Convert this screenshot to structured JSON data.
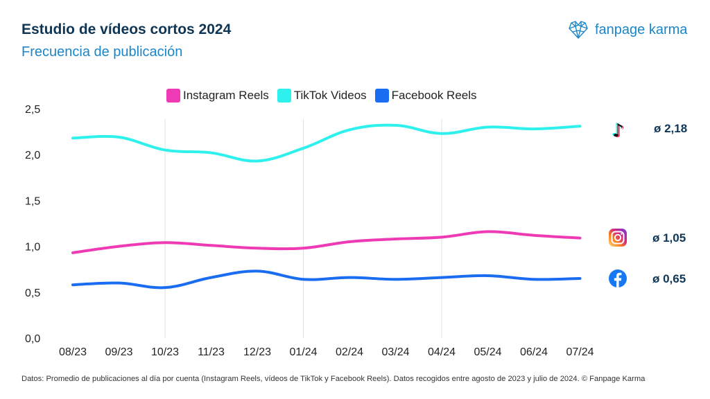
{
  "header": {
    "title": "Estudio de vídeos cortos 2024",
    "subtitle": "Frecuencia de publicación",
    "brand": "fanpage karma"
  },
  "legend": [
    {
      "label": "Instagram Reels",
      "color": "#ee3bb5"
    },
    {
      "label": "TikTok Videos",
      "color": "#2ef0ec"
    },
    {
      "label": "Facebook Reels",
      "color": "#1a6cf0"
    }
  ],
  "averages": {
    "tiktok": "ø 2,18",
    "instagram": "ø 1,05",
    "facebook": "ø 0,65"
  },
  "icons": {
    "tiktok": "tiktok-icon",
    "instagram": "instagram-icon",
    "facebook": "facebook-icon",
    "brand": "fanpage-karma-logo-icon"
  },
  "footnote": "Datos: Promedio de publicaciones al día por cuenta (Instagram Reels, vídeos de TikTok y Facebook Reels). Datos recogidos entre agosto de 2023 y julio de 2024. © Fanpage Karma",
  "chart_data": {
    "type": "line",
    "title": "Frecuencia de publicación",
    "xlabel": "",
    "ylabel": "",
    "categories": [
      "08/23",
      "09/23",
      "10/23",
      "11/23",
      "12/23",
      "01/24",
      "02/24",
      "03/24",
      "04/24",
      "05/24",
      "06/24",
      "07/24"
    ],
    "y_ticks": [
      "0,0",
      "0,5",
      "1,0",
      "1,5",
      "2,0",
      "2,5"
    ],
    "y_tick_values": [
      0,
      0.5,
      1.0,
      1.5,
      2.0,
      2.5
    ],
    "ylim": [
      0,
      2.5
    ],
    "grid": "vertical lines at 10/23, 01/24, 04/24",
    "legend_position": "top-center",
    "series": [
      {
        "name": "TikTok Videos",
        "color": "#2ef0ec",
        "values": [
          2.18,
          2.19,
          2.05,
          2.02,
          1.93,
          2.07,
          2.27,
          2.32,
          2.23,
          2.3,
          2.28,
          2.31
        ]
      },
      {
        "name": "Instagram Reels",
        "color": "#ee3bb5",
        "values": [
          0.93,
          1.0,
          1.04,
          1.01,
          0.98,
          0.98,
          1.05,
          1.08,
          1.1,
          1.16,
          1.12,
          1.09
        ]
      },
      {
        "name": "Facebook Reels",
        "color": "#1a6cf0",
        "values": [
          0.58,
          0.6,
          0.55,
          0.66,
          0.73,
          0.64,
          0.66,
          0.64,
          0.66,
          0.68,
          0.64,
          0.65
        ]
      }
    ]
  }
}
